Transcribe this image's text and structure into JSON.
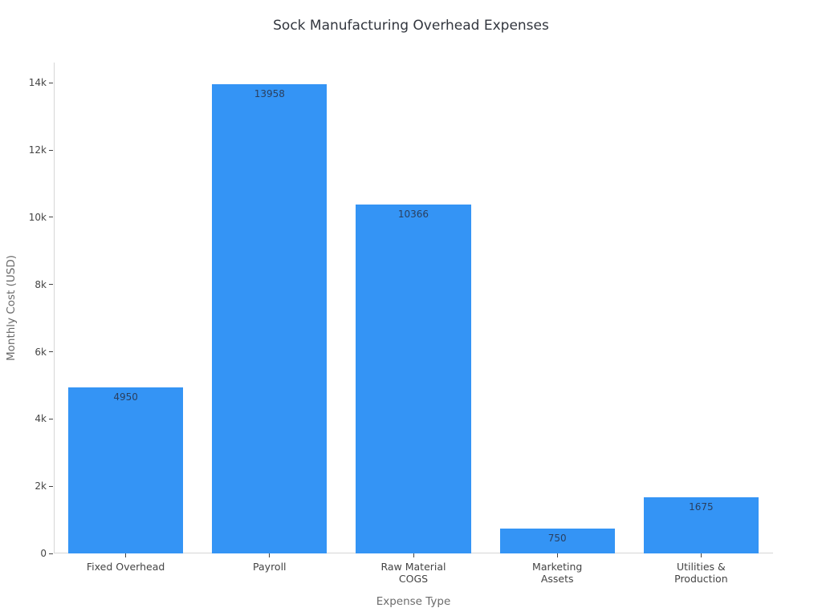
{
  "chart_data": {
    "type": "bar",
    "title": "Sock Manufacturing Overhead Expenses",
    "xlabel": "Expense Type",
    "ylabel": "Monthly Cost (USD)",
    "categories": [
      "Fixed Overhead",
      "Payroll",
      "Raw Material\nCOGS",
      "Marketing\nAssets",
      "Utilities &\nProduction"
    ],
    "values": [
      4950,
      13958,
      10366,
      750,
      1675
    ],
    "value_labels": [
      "4950",
      "13958",
      "10366",
      "750",
      "1675"
    ],
    "ylim": [
      0,
      14600
    ],
    "yticks": {
      "values": [
        0,
        2000,
        4000,
        6000,
        8000,
        10000,
        12000,
        14000
      ],
      "labels": [
        "0",
        "2k",
        "4k",
        "6k",
        "8k",
        "10k",
        "12k",
        "14k"
      ]
    },
    "grid": false,
    "legend": false,
    "colors": {
      "bar": "#3494f5",
      "bar_value_text": "#2a3f5f",
      "axis_line": "#d6d6d6",
      "tick_text": "#444444",
      "axis_title_text": "#6b6b6b",
      "title_text": "#32363e",
      "background": "#ffffff"
    }
  }
}
